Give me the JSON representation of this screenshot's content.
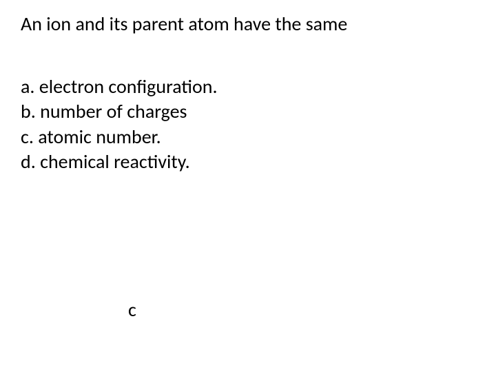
{
  "question": "An ion and its parent atom have the same",
  "options": {
    "a": "a. electron configuration.",
    "b": "b. number of charges",
    "c": "c. atomic number.",
    "d": "d. chemical reactivity."
  },
  "answer": "c",
  "colors": {
    "background": "#ffffff",
    "text": "#000000"
  },
  "typography": {
    "font_family": "Calibri",
    "font_size_pt": 21
  }
}
